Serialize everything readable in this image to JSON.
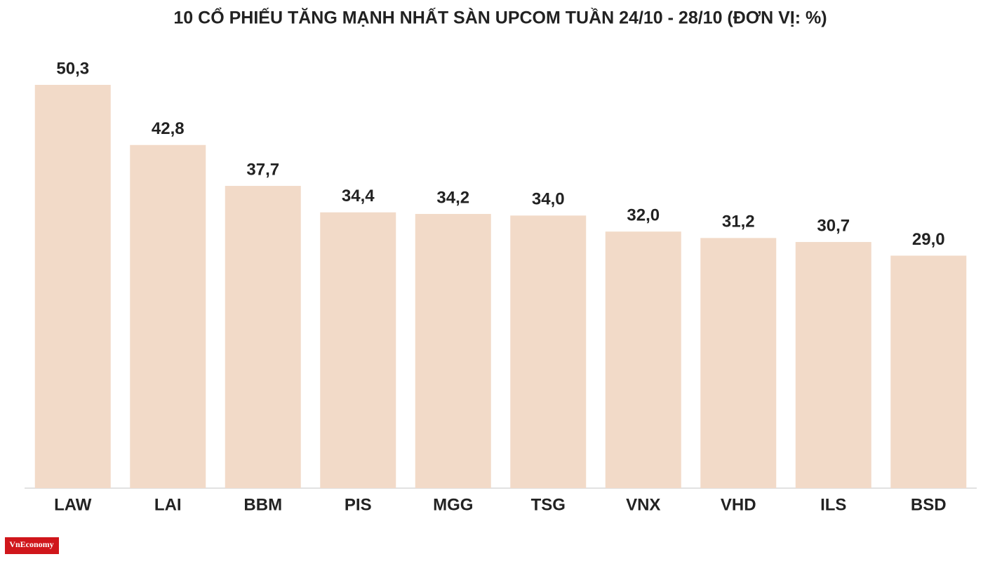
{
  "chart_data": {
    "type": "bar",
    "title": "10 CỔ PHIẾU TĂNG MẠNH NHẤT SÀN UPCOM TUẦN 24/10 - 28/10 (ĐƠN VỊ: %)",
    "categories": [
      "LAW",
      "LAI",
      "BBM",
      "PIS",
      "MGG",
      "TSG",
      "VNX",
      "VHD",
      "ILS",
      "BSD"
    ],
    "values": [
      50.3,
      42.8,
      37.7,
      34.4,
      34.2,
      34.0,
      32.0,
      31.2,
      30.7,
      29.0
    ],
    "value_labels": [
      "50,3",
      "42,8",
      "37,7",
      "34,4",
      "34,2",
      "34,0",
      "32,0",
      "31,2",
      "30,7",
      "29,0"
    ],
    "color": "#f2dac8"
  },
  "logo": "VnEconomy"
}
